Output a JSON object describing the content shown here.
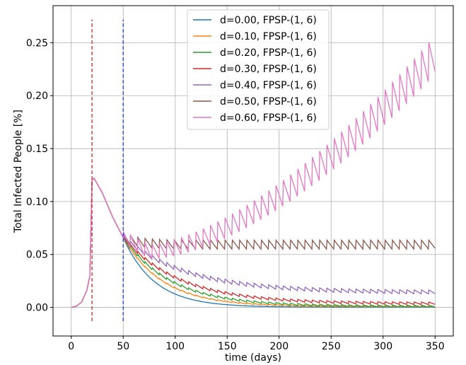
{
  "chart_data": {
    "type": "line",
    "title": "",
    "xlabel": "time (days)",
    "ylabel": "Total Infected People [%]",
    "xlim": [
      -17.5,
      367.5
    ],
    "ylim": [
      -0.027,
      0.285
    ],
    "xticks": [
      0,
      50,
      100,
      150,
      200,
      250,
      300,
      350
    ],
    "yticks": [
      0.0,
      0.05,
      0.1,
      0.15,
      0.2,
      0.25
    ],
    "xtick_labels": [
      "0",
      "50",
      "100",
      "150",
      "200",
      "250",
      "300",
      "350"
    ],
    "ytick_labels": [
      "0.00",
      "0.05",
      "0.10",
      "0.15",
      "0.20",
      "0.25"
    ],
    "grid": true,
    "legend_position": "upper center",
    "vlines": [
      {
        "x": 20,
        "y_range": [
          -0.013,
          0.272
        ],
        "color": "#d62728",
        "style": "dashed"
      },
      {
        "x": 50,
        "y_range": [
          -0.013,
          0.272
        ],
        "color": "#1f3fff",
        "style": "dashed"
      }
    ],
    "series": [
      {
        "name": "d=0.00, FPSP-(1, 6)",
        "color": "#1f77b4",
        "d": 0.0,
        "end_value": 0.0002,
        "sawtooth_amplitude": 0.0
      },
      {
        "name": "d=0.10, FPSP-(1, 6)",
        "color": "#ff7f0e",
        "d": 0.1,
        "end_value": 0.0008,
        "sawtooth_amplitude": 0.001
      },
      {
        "name": "d=0.20, FPSP-(1, 6)",
        "color": "#2ca02c",
        "d": 0.2,
        "end_value": 0.001,
        "sawtooth_amplitude": 0.002
      },
      {
        "name": "d=0.30, FPSP-(1, 6)",
        "color": "#d62728",
        "d": 0.3,
        "end_value": 0.0035,
        "sawtooth_amplitude": 0.0025
      },
      {
        "name": "d=0.40, FPSP-(1, 6)",
        "color": "#9467bd",
        "d": 0.4,
        "end_value": 0.014,
        "sawtooth_amplitude": 0.004
      },
      {
        "name": "d=0.50, FPSP-(1, 6)",
        "color": "#8c564b",
        "d": 0.5,
        "end_value": 0.059,
        "sawtooth_amplitude": 0.009
      },
      {
        "name": "d=0.60, FPSP-(1, 6)",
        "color": "#e377c2",
        "d": 0.6,
        "end_value": 0.237,
        "sawtooth_amplitude": 0.04
      }
    ],
    "common_curve": {
      "start": [
        [
          0,
          0.0
        ],
        [
          5,
          0.0012
        ],
        [
          10,
          0.005
        ],
        [
          15,
          0.016
        ],
        [
          18,
          0.03
        ],
        [
          20,
          0.12
        ],
        [
          22,
          0.122
        ],
        [
          30,
          0.108
        ],
        [
          40,
          0.085
        ],
        [
          50,
          0.066
        ]
      ],
      "sawtooth_period": 7
    }
  }
}
